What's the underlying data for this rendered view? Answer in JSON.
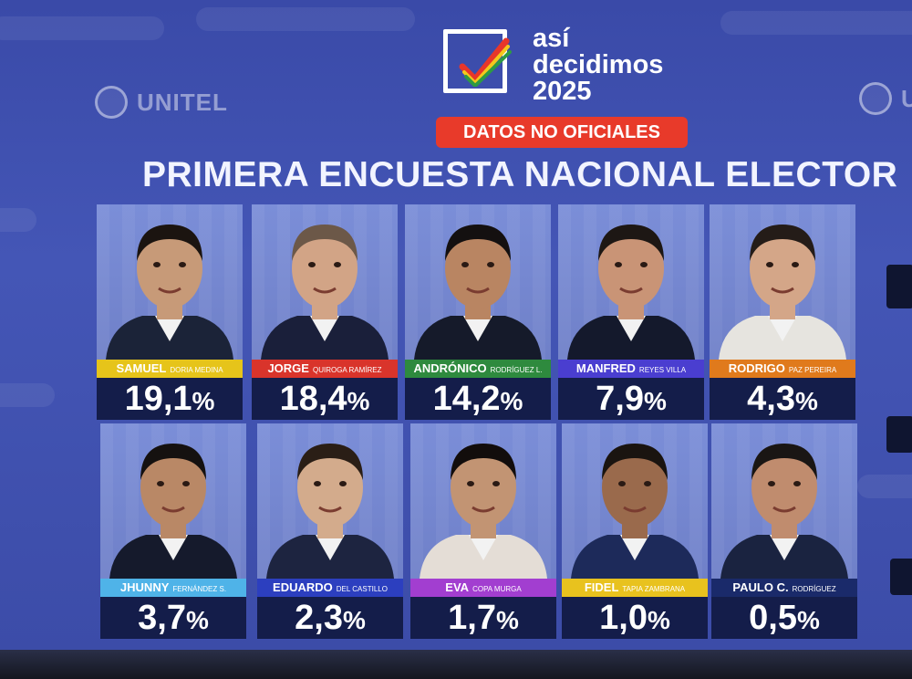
{
  "brand": {
    "logo_line1": "así",
    "logo_line2": "decidimos",
    "logo_line3": "2025",
    "watermark": "UNITEL"
  },
  "badge": "DATOS NO OFICIALES",
  "headline": "PRIMERA ENCUESTA NACIONAL ELECTOR",
  "colors": {
    "badge": "#e83a2a",
    "percent_box": "#141d4a"
  },
  "candidates": [
    {
      "first": "SAMUEL",
      "last": "DORIA MEDINA",
      "percent": "19,1",
      "pct_sign": "%",
      "bar_color": "#e6c41a"
    },
    {
      "first": "JORGE",
      "last": "QUIROGA RAMÍREZ",
      "percent": "18,4",
      "pct_sign": "%",
      "bar_color": "#d9342b"
    },
    {
      "first": "ANDRÓNICO",
      "last": "RODRÍGUEZ L.",
      "percent": "14,2",
      "pct_sign": "%",
      "bar_color": "#2e8a3e"
    },
    {
      "first": "MANFRED",
      "last": "REYES VILLA",
      "percent": "7,9",
      "pct_sign": "%",
      "bar_color": "#4a3ed0"
    },
    {
      "first": "RODRIGO",
      "last": "PAZ PEREIRA",
      "percent": "4,3",
      "pct_sign": "%",
      "bar_color": "#e07a1c"
    },
    {
      "first": "JHUNNY",
      "last": "FERNÁNDEZ S.",
      "percent": "3,7",
      "pct_sign": "%",
      "bar_color": "#4fb3e8"
    },
    {
      "first": "EDUARDO",
      "last": "DEL CASTILLO",
      "percent": "2,3",
      "pct_sign": "%",
      "bar_color": "#2c3fbf"
    },
    {
      "first": "EVA",
      "last": "COPA MURGA",
      "percent": "1,7",
      "pct_sign": "%",
      "bar_color": "#a23ed0"
    },
    {
      "first": "FIDEL",
      "last": "TAPIA ZAMBRANA",
      "percent": "1,0",
      "pct_sign": "%",
      "bar_color": "#e8c21e"
    },
    {
      "first": "PAULO C.",
      "last": "RODRÍGUEZ",
      "percent": "0,5",
      "pct_sign": "%",
      "bar_color": "#1a2a6a"
    }
  ]
}
